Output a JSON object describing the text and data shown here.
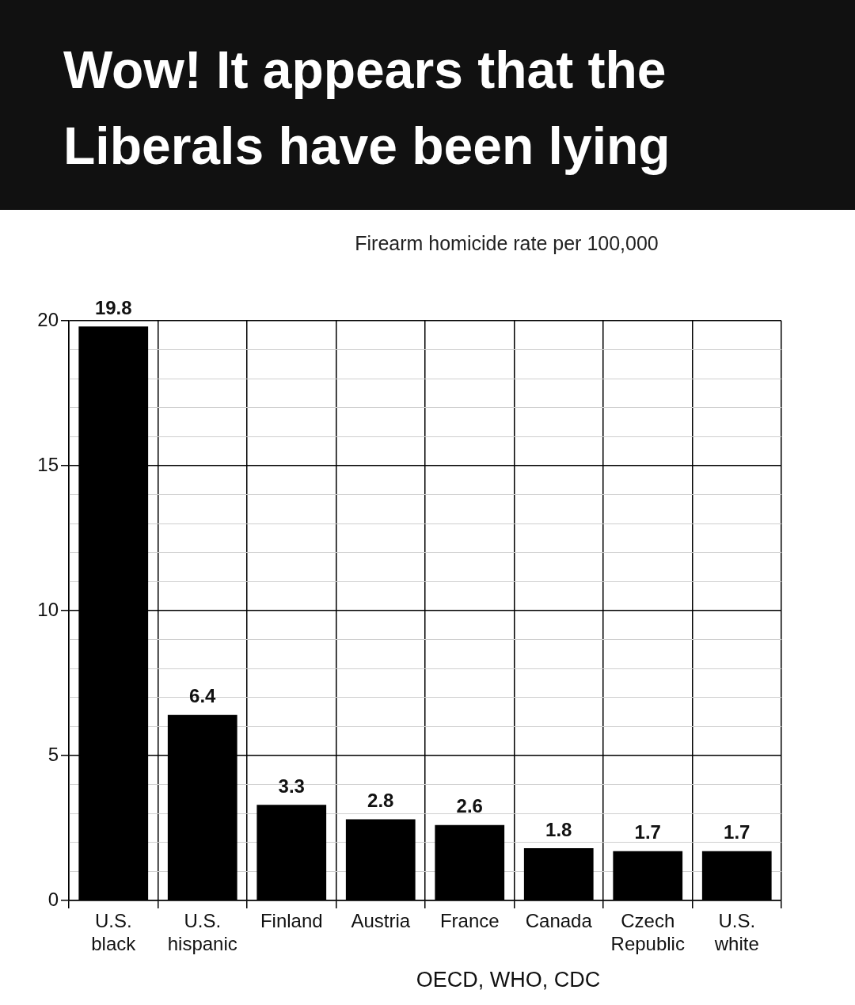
{
  "chart_data": {
    "type": "bar",
    "title": "Wow! It appears that the Liberals have been lying",
    "subtitle": "Firearm homicide rate per 100,000",
    "categories": [
      "U.S. black",
      "U.S. hispanic",
      "Finland",
      "Austria",
      "France",
      "Canada",
      "Czech Republic",
      "U.S. white"
    ],
    "values": [
      19.8,
      6.4,
      3.3,
      2.8,
      2.6,
      1.8,
      1.7,
      1.7
    ],
    "color": "#000000",
    "data_labels": true,
    "ylim": [
      0,
      20
    ],
    "yticks": [
      0,
      {
        "value": 1,
        "label": null
      },
      {
        "value": 2,
        "label": null
      },
      {
        "value": 3,
        "label": null
      },
      {
        "value": 4,
        "label": null
      },
      5,
      {
        "value": 6,
        "label": null
      },
      {
        "value": 7,
        "label": null
      },
      {
        "value": 8,
        "label": null
      },
      {
        "value": 9,
        "label": null
      },
      10,
      {
        "value": 11,
        "label": null
      },
      {
        "value": 12,
        "label": null
      },
      {
        "value": 13,
        "label": null
      },
      {
        "value": 14,
        "label": null
      },
      15,
      {
        "value": 16,
        "label": null
      },
      {
        "value": 17,
        "label": null
      },
      {
        "value": 18,
        "label": null
      },
      {
        "value": 19,
        "label": null
      },
      20
    ],
    "grid": true,
    "annotations": [
      "OECD, WHO, CDC"
    ]
  }
}
